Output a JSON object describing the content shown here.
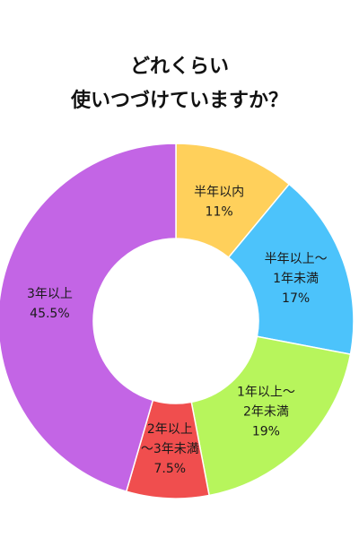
{
  "title_lines": [
    "どれくらい",
    "使いつづけていますか？"
  ],
  "chart_data": {
    "type": "pie",
    "style": "donut",
    "start": "12 o'clock",
    "direction": "clockwise",
    "slices": [
      {
        "label_lines": [
          "半年以内",
          "11%"
        ],
        "value": 11,
        "color": "#FFD05B"
      },
      {
        "label_lines": [
          "半年以上～",
          "1年未満",
          "17%"
        ],
        "value": 17,
        "color": "#4CC3FB"
      },
      {
        "label_lines": [
          "1年以上～",
          "2年未満",
          "19%"
        ],
        "value": 19,
        "color": "#B7F55C"
      },
      {
        "label_lines": [
          "2年以上",
          "～3年未満",
          "7.5%"
        ],
        "value": 7.5,
        "color": "#F04E4E"
      },
      {
        "label_lines": [
          "3年以上",
          "45.5%"
        ],
        "value": 45.5,
        "color": "#C365E5"
      }
    ]
  }
}
